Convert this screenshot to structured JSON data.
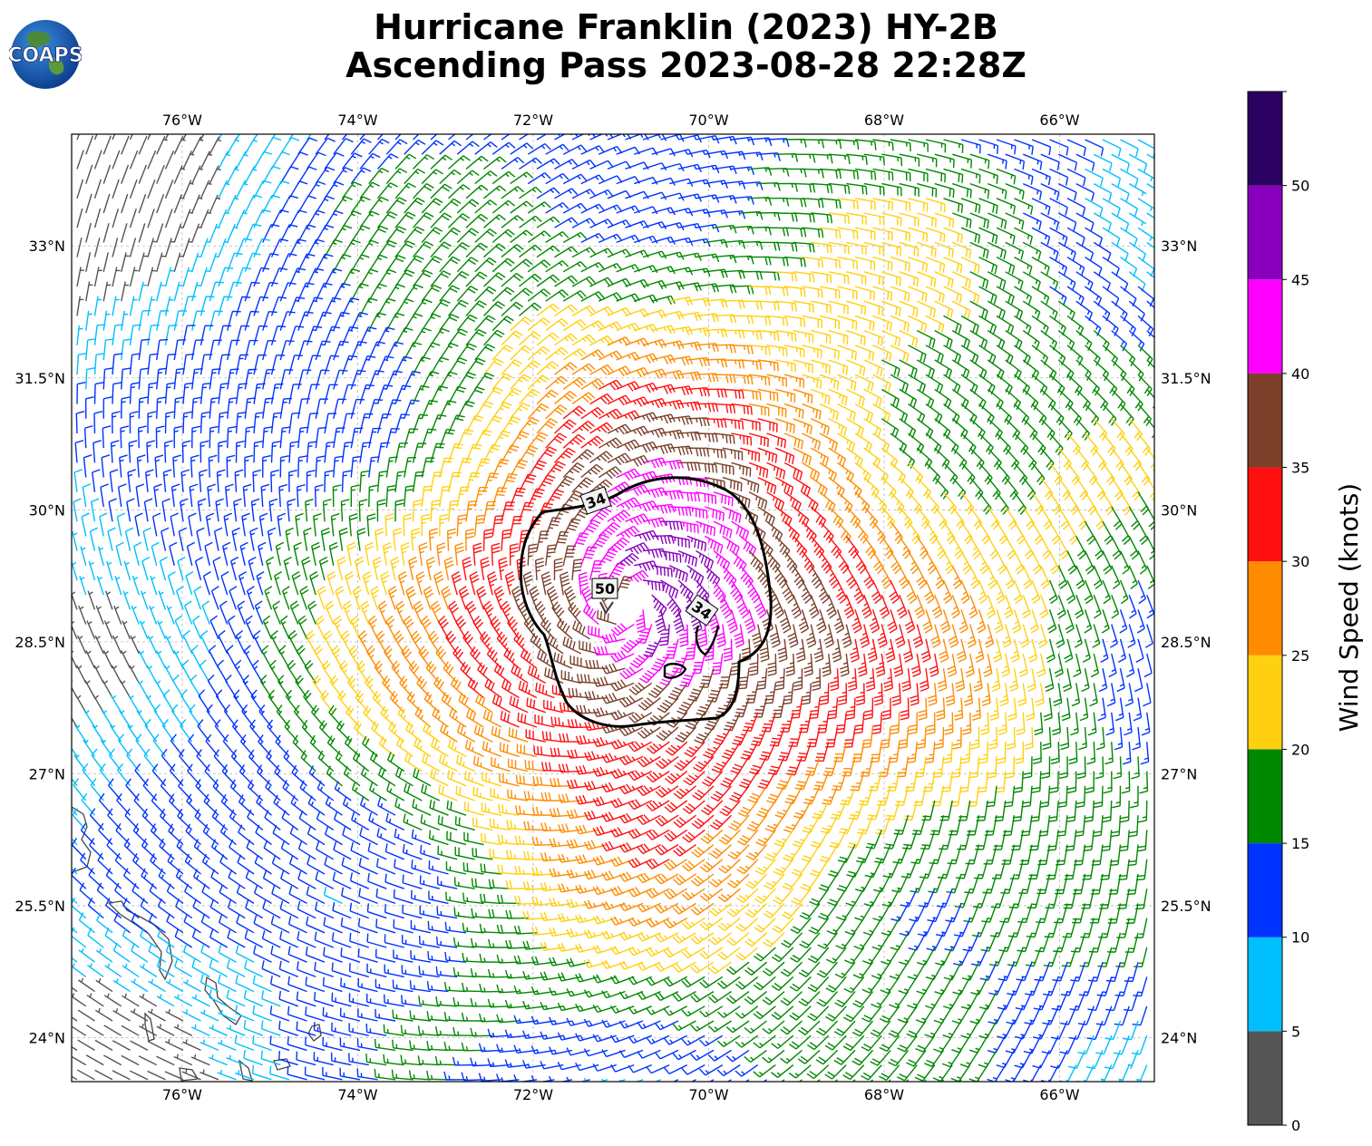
{
  "title_line1": "Hurricane Franklin (2023) HY-2B",
  "title_line2": "Ascending Pass 2023-08-28 22:28Z",
  "logo_text": "COAPS",
  "colorbar": {
    "label": "Wind Speed (knots)",
    "tick_labels": [
      "0",
      "5",
      "10",
      "15",
      "20",
      "25",
      "30",
      "35",
      "40",
      "45",
      "50"
    ],
    "colors": [
      "#555555",
      "#00bfff",
      "#0033ff",
      "#008800",
      "#ffd010",
      "#ff8c00",
      "#ff1010",
      "#7b3f2a",
      "#ff00ff",
      "#8800bb",
      "#2a0060"
    ],
    "bounds": [
      0,
      55
    ]
  },
  "map": {
    "lon_labels": [
      "76°W",
      "74°W",
      "72°W",
      "70°W",
      "68°W",
      "66°W"
    ],
    "lat_labels": [
      "33°N",
      "31.5°N",
      "30°N",
      "28.5°N",
      "27°N",
      "25.5°N",
      "24°N"
    ],
    "lon_values": [
      -76,
      -74,
      -72,
      -70,
      -68,
      -66
    ],
    "lat_values": [
      33,
      31.5,
      30,
      28.5,
      27,
      25.5,
      24
    ],
    "extent": {
      "lon_min": -77.26,
      "lon_max": -64.92,
      "lat_min": 23.5,
      "lat_max": 34.27
    },
    "storm_center": {
      "lon": -70.9,
      "lat": 28.9
    },
    "contour_labels": [
      "34",
      "34",
      "50"
    ]
  },
  "chart_data": {
    "type": "wind_barb_map",
    "title": "Hurricane Franklin (2023) HY-2B Ascending Pass 2023-08-28 22:28Z",
    "colorbar_label": "Wind Speed (knots)",
    "wind_speed_bins_kt": [
      0,
      5,
      10,
      15,
      20,
      25,
      30,
      35,
      40,
      45,
      50,
      55
    ],
    "contours_kt": [
      34,
      50
    ],
    "grid": true
  }
}
